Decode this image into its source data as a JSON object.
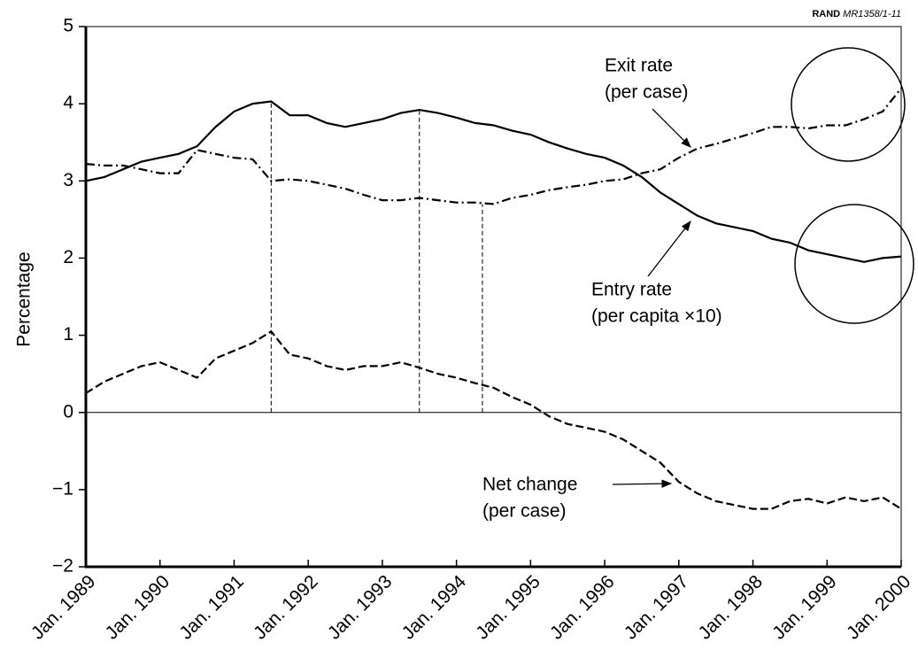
{
  "chart_data": {
    "type": "line",
    "source_org": "RAND",
    "source_id": "MR1358/1-11",
    "y_label": "Percentage",
    "xlim": [
      1989,
      2000
    ],
    "xticks": [
      {
        "value": 1989,
        "label": "Jan. 1989"
      },
      {
        "value": 1990,
        "label": "Jan. 1990"
      },
      {
        "value": 1991,
        "label": "Jan. 1991"
      },
      {
        "value": 1992,
        "label": "Jan. 1992"
      },
      {
        "value": 1993,
        "label": "Jan. 1993"
      },
      {
        "value": 1994,
        "label": "Jan. 1994"
      },
      {
        "value": 1995,
        "label": "Jan. 1995"
      },
      {
        "value": 1996,
        "label": "Jan. 1996"
      },
      {
        "value": 1997,
        "label": "Jan. 1997"
      },
      {
        "value": 1998,
        "label": "Jan. 1998"
      },
      {
        "value": 1999,
        "label": "Jan. 1999"
      },
      {
        "value": 2000,
        "label": "Jan. 2000"
      }
    ],
    "ylim": [
      -2,
      5
    ],
    "yticks": [
      {
        "value": -2,
        "label": "−2"
      },
      {
        "value": -1,
        "label": "−1"
      },
      0,
      1,
      2,
      3,
      4,
      5
    ],
    "grid": false,
    "x": [
      1989,
      1989.25,
      1989.5,
      1989.75,
      1990,
      1990.25,
      1990.5,
      1990.75,
      1991,
      1991.25,
      1991.5,
      1991.75,
      1992,
      1992.25,
      1992.5,
      1992.75,
      1993,
      1993.25,
      1993.5,
      1993.75,
      1994,
      1994.25,
      1994.5,
      1994.75,
      1995,
      1995.25,
      1995.5,
      1995.75,
      1996,
      1996.25,
      1996.5,
      1996.75,
      1997,
      1997.25,
      1997.5,
      1997.75,
      1998,
      1998.25,
      1998.5,
      1998.75,
      1999,
      1999.25,
      1999.5,
      1999.75,
      2000
    ],
    "series": [
      {
        "name": "Entry rate (per capita ×10)",
        "color": "#000000",
        "style": "solid",
        "values": [
          3.0,
          3.05,
          3.15,
          3.25,
          3.3,
          3.35,
          3.45,
          3.7,
          3.9,
          4.0,
          4.03,
          3.85,
          3.85,
          3.75,
          3.7,
          3.75,
          3.8,
          3.88,
          3.92,
          3.88,
          3.82,
          3.75,
          3.72,
          3.65,
          3.6,
          3.5,
          3.42,
          3.35,
          3.3,
          3.2,
          3.05,
          2.85,
          2.7,
          2.55,
          2.45,
          2.4,
          2.35,
          2.25,
          2.2,
          2.1,
          2.05,
          2.0,
          1.95,
          2.0,
          2.02
        ]
      },
      {
        "name": "Exit rate (per case)",
        "color": "#000000",
        "style": "dashdot",
        "values": [
          3.22,
          3.2,
          3.2,
          3.15,
          3.1,
          3.1,
          3.4,
          3.35,
          3.3,
          3.28,
          3.0,
          3.02,
          3.0,
          2.95,
          2.9,
          2.82,
          2.75,
          2.75,
          2.78,
          2.75,
          2.72,
          2.72,
          2.7,
          2.78,
          2.82,
          2.88,
          2.92,
          2.95,
          3.0,
          3.02,
          3.1,
          3.15,
          3.3,
          3.42,
          3.48,
          3.55,
          3.62,
          3.7,
          3.7,
          3.68,
          3.72,
          3.72,
          3.8,
          3.9,
          4.2
        ]
      },
      {
        "name": "Net change (per case)",
        "color": "#000000",
        "style": "dashed",
        "values": [
          0.25,
          0.4,
          0.5,
          0.6,
          0.65,
          0.55,
          0.45,
          0.7,
          0.8,
          0.9,
          1.05,
          0.75,
          0.7,
          0.6,
          0.55,
          0.6,
          0.6,
          0.65,
          0.58,
          0.5,
          0.45,
          0.38,
          0.32,
          0.2,
          0.1,
          -0.05,
          -0.15,
          -0.2,
          -0.25,
          -0.35,
          -0.5,
          -0.65,
          -0.9,
          -1.05,
          -1.15,
          -1.2,
          -1.25,
          -1.25,
          -1.15,
          -1.12,
          -1.18,
          -1.1,
          -1.15,
          -1.1,
          -1.25
        ]
      }
    ],
    "annotations": [
      {
        "lines": [
          "Exit rate",
          "(per case)"
        ]
      },
      {
        "lines": [
          "Entry rate",
          "(per capita ×10)"
        ]
      },
      {
        "lines": [
          "Net change",
          "(per case)"
        ]
      }
    ],
    "reference_lines": [
      {
        "x": 1991.5,
        "y": 4.03
      },
      {
        "x": 1993.5,
        "y": 3.92
      },
      {
        "x": 1994.35,
        "y": 2.7
      }
    ]
  }
}
